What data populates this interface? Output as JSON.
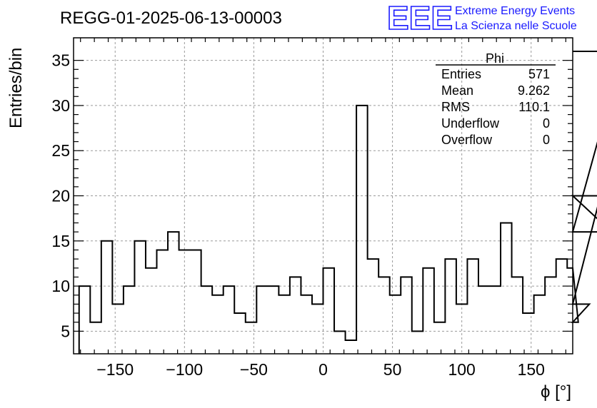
{
  "chart_data": {
    "type": "histogram",
    "title": "REGG-01-2025-06-13-00003",
    "xlabel": "ϕ [°]",
    "ylabel": "Entries/bin",
    "xlim": [
      -180,
      180
    ],
    "ylim": [
      2.5,
      37.5
    ],
    "bin_width": 8,
    "bin_start": -176,
    "x_ticks": [
      -150,
      -100,
      -50,
      0,
      50,
      100,
      150
    ],
    "y_ticks": [
      5,
      10,
      15,
      20,
      25,
      30,
      35
    ],
    "values": [
      10,
      6,
      15,
      8,
      10,
      15,
      12,
      14,
      16,
      14,
      14,
      10,
      9,
      10,
      7,
      6,
      10,
      10,
      9,
      11,
      9,
      8,
      12,
      5,
      4,
      30,
      13,
      11,
      9,
      11,
      5,
      12,
      6,
      13,
      8,
      13,
      10,
      10,
      17,
      11,
      7,
      9,
      11,
      13,
      12,
      6,
      8,
      20,
      16,
      36
    ],
    "grid": true,
    "stats": {
      "name": "Phi",
      "rows": [
        {
          "label": "Entries",
          "value": "571"
        },
        {
          "label": "Mean",
          "value": "9.262"
        },
        {
          "label": "RMS",
          "value": "110.1"
        },
        {
          "label": "Underflow",
          "value": "0"
        },
        {
          "label": "Overflow",
          "value": "0"
        }
      ]
    }
  },
  "logo": {
    "mark": "EEE",
    "line1": "Extreme Energy Events",
    "line2": "La Scienza nelle Scuole",
    "color": "#1a1aff"
  }
}
